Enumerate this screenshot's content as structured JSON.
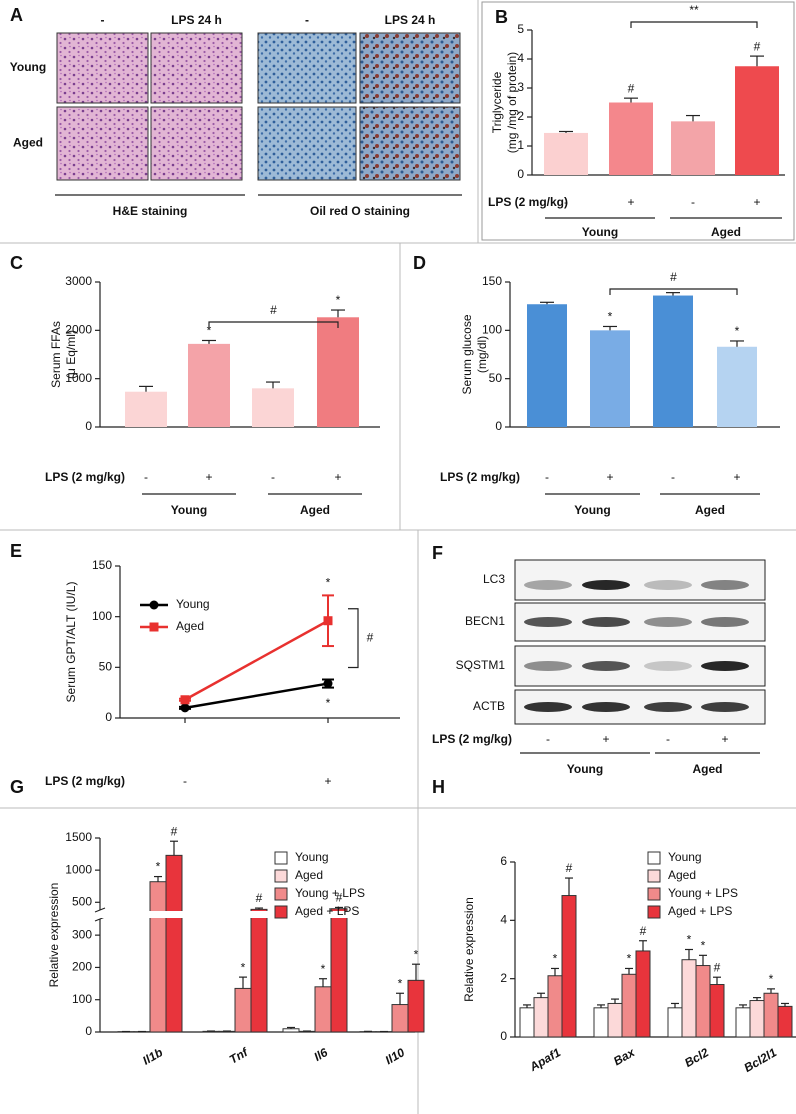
{
  "panels": {
    "A": {
      "panel": "A",
      "columns": [
        "-",
        "LPS 24 h",
        "-",
        "LPS 24 h"
      ],
      "rows": [
        "Young",
        "Aged"
      ],
      "stains": [
        "H&E staining",
        "Oil red O staining"
      ]
    },
    "F": {
      "panel": "F",
      "bands": [
        "LC3",
        "BECN1",
        "SQSTM1",
        "ACTB"
      ],
      "treatment_label": "LPS (2 mg/kg)",
      "treatment": [
        "-",
        "+",
        "-",
        "+"
      ],
      "groups": [
        "Young",
        "Aged"
      ]
    }
  },
  "chart_data": [
    {
      "panel": "B",
      "type": "bar",
      "ylabel": [
        "Triglyceride",
        "(mg /mg of protein)"
      ],
      "categories": [
        "-",
        "+",
        "-",
        "+"
      ],
      "treatment_label": "LPS (2 mg/kg)",
      "groups": [
        "Young",
        "Aged"
      ],
      "values": [
        1.45,
        2.5,
        1.85,
        3.75
      ],
      "errors": [
        0.05,
        0.15,
        0.2,
        0.35
      ],
      "colors": [
        "#fbd0d0",
        "#f4878c",
        "#f3a4a8",
        "#ee4a4e"
      ],
      "significance": [
        null,
        "#",
        null,
        "#"
      ],
      "bracket": {
        "label": "**",
        "from": 1,
        "to": 3
      },
      "ylim": [
        0,
        5
      ],
      "yticks": [
        0,
        1,
        2,
        3,
        4,
        5
      ]
    },
    {
      "panel": "C",
      "type": "bar",
      "ylabel": [
        "Serum FFAs",
        "(μ Eq/ml)"
      ],
      "categories": [
        "-",
        "+",
        "-",
        "+"
      ],
      "treatment_label": "LPS (2 mg/kg)",
      "groups": [
        "Young",
        "Aged"
      ],
      "values": [
        730,
        1720,
        800,
        2270
      ],
      "errors": [
        110,
        70,
        130,
        150
      ],
      "colors": [
        "#fbd5d5",
        "#f4a3a8",
        "#fbd5d5",
        "#f07c80"
      ],
      "significance": [
        null,
        "*",
        null,
        "*"
      ],
      "bracket": {
        "label": "#",
        "from": 1,
        "to": 3
      },
      "ylim": [
        0,
        3000
      ],
      "yticks": [
        0,
        1000,
        2000,
        3000
      ]
    },
    {
      "panel": "D",
      "type": "bar",
      "ylabel": [
        "Serum glucose",
        "(mg/dl)"
      ],
      "categories": [
        "-",
        "+",
        "-",
        "+"
      ],
      "treatment_label": "LPS (2 mg/kg)",
      "groups": [
        "Young",
        "Aged"
      ],
      "values": [
        127,
        100,
        136,
        83
      ],
      "errors": [
        2,
        4,
        3,
        6
      ],
      "colors": [
        "#4a8fd6",
        "#79ace5",
        "#4a8fd6",
        "#b5d3f1"
      ],
      "significance": [
        null,
        "*",
        null,
        "*"
      ],
      "bracket": {
        "label": "#",
        "from": 1,
        "to": 3
      },
      "ylim": [
        0,
        150
      ],
      "yticks": [
        0,
        50,
        100,
        150
      ]
    },
    {
      "panel": "E",
      "type": "line",
      "ylabel": "Serum GPT/ALT (IU/L)",
      "xlabel": "LPS (2 mg/kg)",
      "categories": [
        "-",
        "+"
      ],
      "legend": "upper left",
      "series": [
        {
          "name": "Young",
          "color": "#000000",
          "values": [
            10,
            34
          ],
          "errors": [
            1,
            4
          ],
          "significance": [
            null,
            "*"
          ]
        },
        {
          "name": "Aged",
          "color": "#e8312f",
          "values": [
            18,
            96
          ],
          "errors": [
            1,
            25
          ],
          "significance": [
            null,
            "*"
          ]
        }
      ],
      "bracket": {
        "label": "#"
      },
      "ylim": [
        0,
        150
      ],
      "yticks": [
        0,
        50,
        100,
        150
      ]
    },
    {
      "panel": "G",
      "type": "grouped_bar",
      "ylabel": "Relative expression",
      "categories": [
        "Il1b",
        "Tnf",
        "Il6",
        "Il10"
      ],
      "legend": "upper right",
      "series": [
        {
          "name": "Young",
          "color": "#ffffff",
          "values": [
            1,
            2,
            10,
            1
          ],
          "errors": [
            0.5,
            1,
            4,
            1
          ],
          "significance": [
            null,
            null,
            null,
            null
          ]
        },
        {
          "name": "Aged",
          "color": "#fcd9d9",
          "values": [
            1,
            2,
            2,
            1
          ],
          "errors": [
            0.5,
            1,
            1,
            0.5
          ],
          "significance": [
            null,
            null,
            null,
            null
          ]
        },
        {
          "name": "Young + LPS",
          "color": "#f08a8a",
          "values": [
            820,
            135,
            140,
            85
          ],
          "errors": [
            80,
            35,
            25,
            35
          ],
          "significance": [
            "*",
            "*",
            "*",
            "*"
          ]
        },
        {
          "name": "Aged + LPS",
          "color": "#e8343c",
          "values": [
            1230,
            390,
            400,
            160
          ],
          "errors": [
            220,
            20,
            20,
            50
          ],
          "significance": [
            "#",
            "#",
            "#",
            "*"
          ]
        }
      ],
      "ylim": [
        0,
        1500
      ],
      "ybreak": [
        350,
        380
      ],
      "yticks": [
        0,
        100,
        200,
        300,
        500,
        1000,
        1500
      ]
    },
    {
      "panel": "H",
      "type": "grouped_bar",
      "ylabel": "Relative expression",
      "categories": [
        "Apaf1",
        "Bax",
        "Bcl2",
        "Bcl2l1"
      ],
      "legend": "upper right",
      "series": [
        {
          "name": "Young",
          "color": "#ffffff",
          "values": [
            1.0,
            1.0,
            1.0,
            1.0
          ],
          "errors": [
            0.1,
            0.1,
            0.15,
            0.1
          ],
          "significance": [
            null,
            null,
            null,
            null
          ]
        },
        {
          "name": "Aged",
          "color": "#fcd9d9",
          "values": [
            1.35,
            1.15,
            2.65,
            1.25
          ],
          "errors": [
            0.15,
            0.15,
            0.35,
            0.1
          ],
          "significance": [
            null,
            null,
            "*",
            null
          ]
        },
        {
          "name": "Young + LPS",
          "color": "#f08a8a",
          "values": [
            2.1,
            2.15,
            2.45,
            1.5
          ],
          "errors": [
            0.25,
            0.2,
            0.35,
            0.15
          ],
          "significance": [
            "*",
            "*",
            "*",
            "*"
          ]
        },
        {
          "name": "Aged + LPS",
          "color": "#e8343c",
          "values": [
            4.85,
            2.95,
            1.8,
            1.05
          ],
          "errors": [
            0.6,
            0.35,
            0.25,
            0.1
          ],
          "significance": [
            "#",
            "#",
            "#",
            null
          ]
        }
      ],
      "ylim": [
        0,
        6
      ],
      "yticks": [
        0,
        2,
        4,
        6
      ]
    }
  ]
}
